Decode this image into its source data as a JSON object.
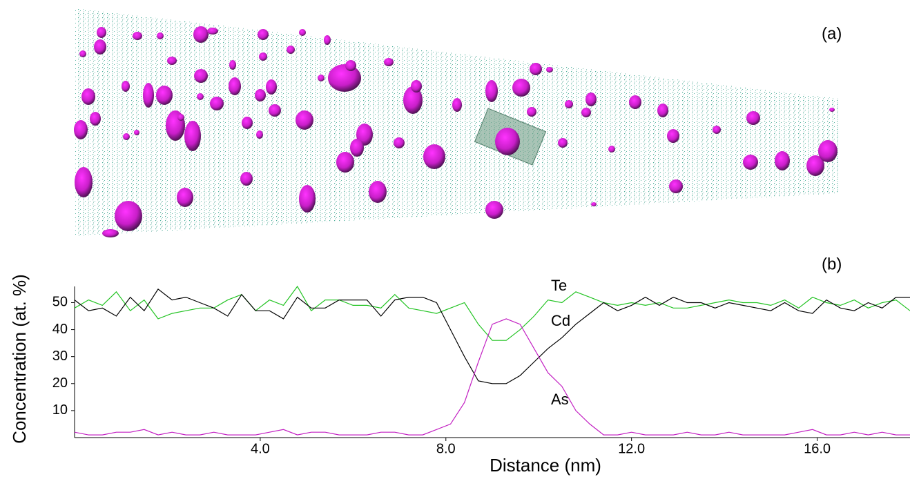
{
  "chart_data": {
    "type": "line",
    "panel_labels": [
      "(a)",
      "(b)"
    ],
    "xlabel": "Distance (nm)",
    "ylabel": "Concentration (at. %)",
    "x": [
      0,
      0.3,
      0.6,
      0.9,
      1.2,
      1.5,
      1.8,
      2.1,
      2.4,
      2.7,
      3,
      3.3,
      3.6,
      3.9,
      4.2,
      4.5,
      4.8,
      5.1,
      5.4,
      5.7,
      6,
      6.3,
      6.6,
      6.9,
      7.2,
      7.5,
      7.8,
      8.1,
      8.4,
      8.7,
      9,
      9.3,
      9.6,
      9.9,
      10.2,
      10.5,
      10.8,
      11.1,
      11.4,
      11.7,
      12,
      12.3,
      12.6,
      12.9,
      13.2,
      13.5,
      13.8,
      14.1,
      14.4,
      14.7,
      15,
      15.3,
      15.6,
      15.9,
      16.2,
      16.5,
      16.8,
      17.1,
      17.4,
      17.7,
      18
    ],
    "series": [
      {
        "name": "Te",
        "color": "#22c322",
        "values": [
          48,
          51,
          49,
          54,
          47,
          51,
          44,
          46,
          47,
          48,
          48,
          51,
          53,
          47,
          51,
          49,
          56,
          47,
          51,
          51,
          49,
          49,
          48,
          53,
          48,
          47,
          46,
          48,
          50,
          42,
          36,
          36,
          40,
          45,
          51,
          50,
          54,
          52,
          50,
          49,
          50,
          49,
          50,
          48,
          48,
          49,
          50,
          51,
          50,
          50,
          49,
          51,
          48,
          52,
          50,
          49,
          51,
          48,
          50,
          51,
          47
        ]
      },
      {
        "name": "Cd",
        "color": "#000000",
        "values": [
          51,
          47,
          48,
          45,
          52,
          47,
          55,
          51,
          52,
          50,
          48,
          45,
          53,
          47,
          47,
          44,
          52,
          48,
          48,
          51,
          51,
          51,
          45,
          51,
          52,
          52,
          50,
          40,
          30,
          21,
          20,
          20,
          23,
          28,
          33,
          37,
          42,
          46,
          50,
          47,
          49,
          52,
          49,
          52,
          50,
          50,
          48,
          50,
          49,
          48,
          47,
          50,
          47,
          46,
          51,
          48,
          47,
          50,
          48,
          52,
          52
        ]
      },
      {
        "name": "As",
        "color": "#c21fc2",
        "values": [
          2,
          1,
          1,
          2,
          2,
          3,
          1,
          2,
          1,
          1,
          2,
          1,
          1,
          1,
          2,
          3,
          1,
          2,
          2,
          1,
          1,
          1,
          2,
          2,
          1,
          1,
          3,
          5,
          13,
          28,
          42,
          44,
          42,
          33,
          24,
          19,
          10,
          5,
          1,
          1,
          2,
          1,
          1,
          1,
          2,
          1,
          1,
          2,
          1,
          1,
          1,
          1,
          2,
          3,
          1,
          1,
          2,
          1,
          2,
          1,
          1
        ]
      }
    ],
    "xlim": [
      0,
      18
    ],
    "ylim": [
      0,
      56
    ],
    "xticks": [
      {
        "value": 4,
        "label": "4.0"
      },
      {
        "value": 8,
        "label": "8.0"
      },
      {
        "value": 12,
        "label": "12.0"
      },
      {
        "value": 16,
        "label": "16.0"
      }
    ],
    "yticks": [
      10,
      20,
      30,
      40,
      50
    ]
  }
}
